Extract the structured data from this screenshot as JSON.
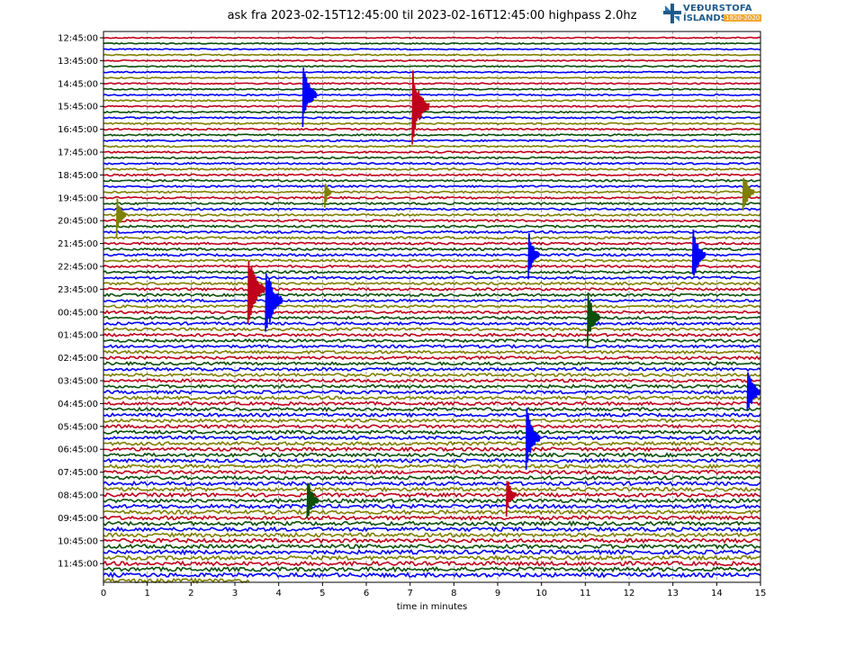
{
  "chart_data": {
    "type": "line",
    "title": "ask fra 2023-02-15T12:45:00 til 2023-02-16T12:45:00 highpass 2.0hz",
    "xlabel": "time in minutes",
    "xlim": [
      0,
      15
    ],
    "x_ticks": [
      0,
      1,
      2,
      3,
      4,
      5,
      6,
      7,
      8,
      9,
      10,
      11,
      12,
      13,
      14,
      15
    ],
    "row_labels": [
      "12:45:00",
      "13:45:00",
      "14:45:00",
      "15:45:00",
      "16:45:00",
      "17:45:00",
      "18:45:00",
      "19:45:00",
      "20:45:00",
      "21:45:00",
      "22:45:00",
      "23:45:00",
      "00:45:00",
      "01:45:00",
      "02:45:00",
      "03:45:00",
      "04:45:00",
      "05:45:00",
      "06:45:00",
      "07:45:00",
      "08:45:00",
      "09:45:00",
      "10:45:00",
      "11:45:00"
    ],
    "trace_count": 96,
    "trace_colors": [
      "#c0001a",
      "#0a4f0a",
      "#0000ff",
      "#7f7f00"
    ],
    "last_trace_end_minutes": 3.35,
    "vertical_grid": "dashed",
    "events": [
      {
        "minute": 3.3,
        "trace": 44,
        "amplitude": 1.0
      },
      {
        "minute": 3.7,
        "trace": 46,
        "amplitude": 1.0
      },
      {
        "minute": 7.05,
        "trace": 12,
        "amplitude": 1.0
      },
      {
        "minute": 4.55,
        "trace": 10,
        "amplitude": 0.8
      },
      {
        "minute": 14.6,
        "trace": 27,
        "amplitude": 0.6
      },
      {
        "minute": 13.45,
        "trace": 38,
        "amplitude": 0.7
      },
      {
        "minute": 9.7,
        "trace": 38,
        "amplitude": 0.6
      },
      {
        "minute": 11.05,
        "trace": 49,
        "amplitude": 0.7
      },
      {
        "minute": 9.65,
        "trace": 70,
        "amplitude": 0.8
      },
      {
        "minute": 14.7,
        "trace": 62,
        "amplitude": 0.7
      },
      {
        "minute": 4.65,
        "trace": 81,
        "amplitude": 0.6
      },
      {
        "minute": 9.2,
        "trace": 80,
        "amplitude": 0.5
      },
      {
        "minute": 0.3,
        "trace": 31,
        "amplitude": 0.5
      },
      {
        "minute": 5.05,
        "trace": 27,
        "amplitude": 0.3
      }
    ]
  },
  "logo": {
    "top": "VEÐURSTOFA",
    "bottom": "ÍSLANDS",
    "years": "1920-2020"
  }
}
